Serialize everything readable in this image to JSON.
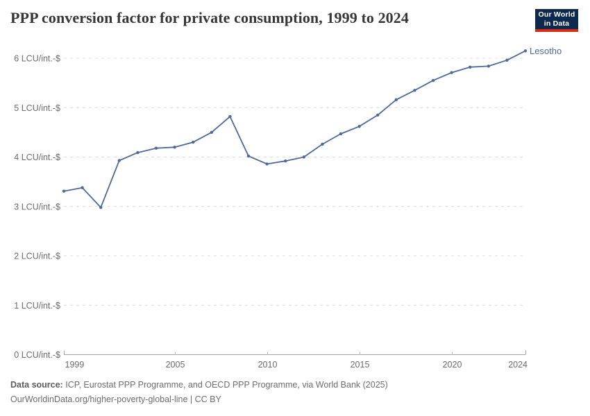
{
  "header": {
    "title": "PPP conversion factor for private consumption, 1999 to 2024",
    "logo": {
      "line1": "Our World",
      "line2": "in Data"
    }
  },
  "chart_data": {
    "type": "line",
    "title": "PPP conversion factor for private consumption, 1999 to 2024",
    "entity": "Lesotho",
    "x": [
      1999,
      2000,
      2001,
      2002,
      2003,
      2004,
      2005,
      2006,
      2007,
      2008,
      2009,
      2010,
      2011,
      2012,
      2013,
      2014,
      2015,
      2016,
      2017,
      2018,
      2019,
      2020,
      2021,
      2022,
      2023,
      2024
    ],
    "values": [
      3.31,
      3.38,
      2.98,
      3.93,
      4.09,
      4.18,
      4.2,
      4.3,
      4.5,
      4.82,
      4.02,
      3.86,
      3.92,
      4.0,
      4.26,
      4.47,
      4.62,
      4.85,
      5.16,
      5.35,
      5.55,
      5.71,
      5.82,
      5.84,
      5.96,
      6.15
    ],
    "xlabel": "",
    "ylabel": "LCU/int.-$",
    "ylim": [
      0,
      6
    ],
    "yticks": [
      0,
      1,
      2,
      3,
      4,
      5,
      6
    ],
    "ytick_suffix": " LCU/int.-$",
    "xticks": [
      1999,
      2005,
      2010,
      2015,
      2020,
      2024
    ],
    "grid": "horizontal dashed",
    "legend_position": "end-of-line label"
  },
  "colors": {
    "line": "#4C6A9C",
    "logo_bg": "#0d2a4e",
    "logo_bar": "#dc2a0e"
  },
  "footer": {
    "source_label": "Data source:",
    "source_text": "ICP, Eurostat PPP Programme, and OECD PPP Programme, via World Bank (2025)",
    "link_line": "OurWorldinData.org/higher-poverty-global-line | CC BY"
  }
}
